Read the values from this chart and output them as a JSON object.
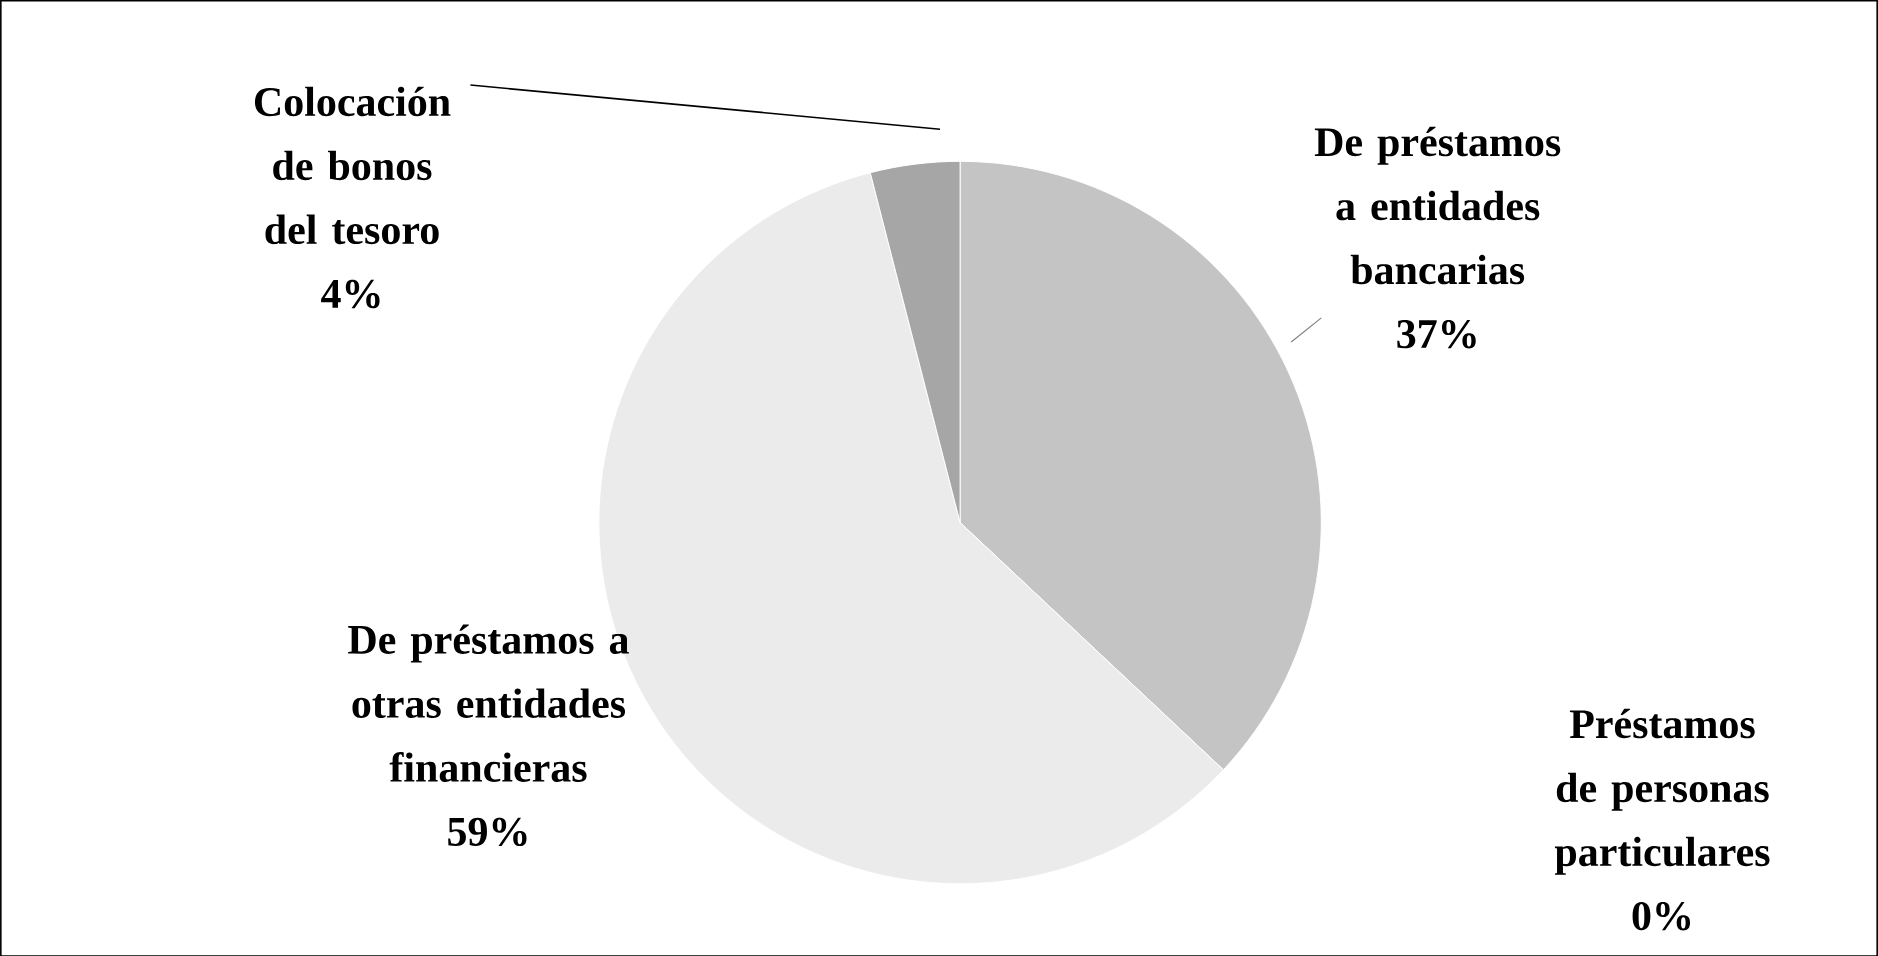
{
  "chart_data": {
    "type": "pie",
    "categories": [
      "De préstamos a entidades bancarias",
      "Préstamos de personas particulares",
      "De préstamos a otras entidades financieras",
      "Colocación de bonos del tesoro"
    ],
    "values": [
      37,
      0,
      59,
      4
    ],
    "value_labels": [
      "37%",
      "0%",
      "59%",
      "4%"
    ],
    "colors": [
      "#c4c4c4",
      "#b0b0b0",
      "#ebebeb",
      "#a6a6a6"
    ]
  }
}
